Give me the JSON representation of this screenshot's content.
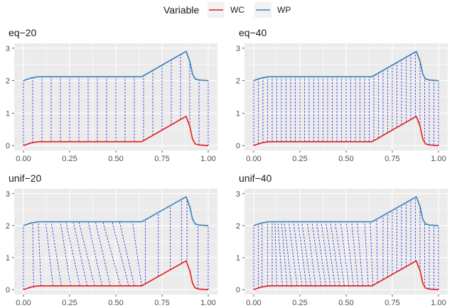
{
  "legend": {
    "title": "Variable",
    "items": [
      {
        "label": "WC",
        "color": "#e41a1c"
      },
      {
        "label": "WP",
        "color": "#377eb8"
      }
    ]
  },
  "chart_data": {
    "type": "line",
    "layout": "facet-grid-2x2",
    "grid": true,
    "panel_background": "#ebebeb",
    "connector_color": "#1f1fd9",
    "connector_style": "dashed",
    "xlim": [
      0,
      1
    ],
    "ylim": [
      0,
      3
    ],
    "x_ticks": [
      "0.00",
      "0.25",
      "0.50",
      "0.75",
      "1.00"
    ],
    "y_ticks": [
      "0",
      "1",
      "2",
      "3"
    ],
    "series": [
      {
        "name": "WC",
        "color": "#e41a1c",
        "x": [
          0.0,
          0.02,
          0.04,
          0.06,
          0.08,
          0.1,
          0.64,
          0.88,
          0.9,
          0.915,
          0.93,
          0.95,
          1.0
        ],
        "y": [
          0.0,
          0.04,
          0.08,
          0.1,
          0.12,
          0.12,
          0.12,
          0.9,
          0.6,
          0.2,
          0.05,
          0.02,
          0.0
        ]
      },
      {
        "name": "WP",
        "color": "#377eb8",
        "x": [
          0.0,
          0.02,
          0.04,
          0.06,
          0.08,
          0.1,
          0.64,
          0.88,
          0.9,
          0.915,
          0.93,
          0.95,
          1.0
        ],
        "y": [
          2.0,
          2.04,
          2.08,
          2.1,
          2.12,
          2.12,
          2.12,
          2.9,
          2.6,
          2.2,
          2.05,
          2.02,
          2.0
        ]
      }
    ],
    "panels": [
      {
        "title": "eq−20",
        "connectors": [
          [
            0.0,
            0.0
          ],
          [
            0.05,
            0.05
          ],
          [
            0.1,
            0.1
          ],
          [
            0.15,
            0.15
          ],
          [
            0.2,
            0.2
          ],
          [
            0.25,
            0.25
          ],
          [
            0.3,
            0.3
          ],
          [
            0.35,
            0.35
          ],
          [
            0.4,
            0.4
          ],
          [
            0.45,
            0.45
          ],
          [
            0.5,
            0.5
          ],
          [
            0.55,
            0.55
          ],
          [
            0.6,
            0.6
          ],
          [
            0.65,
            0.65
          ],
          [
            0.7,
            0.7
          ],
          [
            0.75,
            0.75
          ],
          [
            0.8,
            0.8
          ],
          [
            0.85,
            0.85
          ],
          [
            0.9,
            0.9
          ],
          [
            0.95,
            0.95
          ],
          [
            1.0,
            1.0
          ]
        ]
      },
      {
        "title": "eq−40",
        "connectors": [
          [
            0.0,
            0.0
          ],
          [
            0.025,
            0.025
          ],
          [
            0.05,
            0.05
          ],
          [
            0.075,
            0.075
          ],
          [
            0.1,
            0.1
          ],
          [
            0.125,
            0.125
          ],
          [
            0.15,
            0.15
          ],
          [
            0.175,
            0.175
          ],
          [
            0.2,
            0.2
          ],
          [
            0.225,
            0.225
          ],
          [
            0.25,
            0.25
          ],
          [
            0.275,
            0.275
          ],
          [
            0.3,
            0.3
          ],
          [
            0.325,
            0.325
          ],
          [
            0.35,
            0.35
          ],
          [
            0.375,
            0.375
          ],
          [
            0.4,
            0.4
          ],
          [
            0.425,
            0.425
          ],
          [
            0.45,
            0.45
          ],
          [
            0.475,
            0.475
          ],
          [
            0.5,
            0.5
          ],
          [
            0.525,
            0.525
          ],
          [
            0.55,
            0.55
          ],
          [
            0.575,
            0.575
          ],
          [
            0.6,
            0.6
          ],
          [
            0.625,
            0.625
          ],
          [
            0.65,
            0.65
          ],
          [
            0.675,
            0.675
          ],
          [
            0.7,
            0.7
          ],
          [
            0.725,
            0.725
          ],
          [
            0.75,
            0.75
          ],
          [
            0.775,
            0.775
          ],
          [
            0.8,
            0.8
          ],
          [
            0.825,
            0.825
          ],
          [
            0.85,
            0.85
          ],
          [
            0.875,
            0.875
          ],
          [
            0.9,
            0.9
          ],
          [
            0.925,
            0.925
          ],
          [
            0.95,
            0.95
          ],
          [
            0.975,
            0.975
          ],
          [
            1.0,
            1.0
          ]
        ]
      },
      {
        "title": "unif−20",
        "connectors": [
          [
            0.0,
            0.0
          ],
          [
            0.055,
            0.05
          ],
          [
            0.095,
            0.08
          ],
          [
            0.16,
            0.12
          ],
          [
            0.205,
            0.15
          ],
          [
            0.255,
            0.2
          ],
          [
            0.305,
            0.23
          ],
          [
            0.345,
            0.27
          ],
          [
            0.385,
            0.3
          ],
          [
            0.425,
            0.35
          ],
          [
            0.47,
            0.39
          ],
          [
            0.525,
            0.43
          ],
          [
            0.57,
            0.48
          ],
          [
            0.6,
            0.52
          ],
          [
            0.64,
            0.59
          ],
          [
            0.66,
            0.66
          ],
          [
            0.73,
            0.73
          ],
          [
            0.795,
            0.795
          ],
          [
            0.855,
            0.855
          ],
          [
            0.885,
            0.885
          ],
          [
            0.945,
            0.945
          ],
          [
            1.0,
            1.0
          ]
        ]
      },
      {
        "title": "unif−40",
        "connectors": [
          [
            0.0,
            0.0
          ],
          [
            0.025,
            0.025
          ],
          [
            0.045,
            0.045
          ],
          [
            0.075,
            0.075
          ],
          [
            0.1,
            0.1
          ],
          [
            0.125,
            0.115
          ],
          [
            0.155,
            0.13
          ],
          [
            0.18,
            0.15
          ],
          [
            0.205,
            0.165
          ],
          [
            0.235,
            0.19
          ],
          [
            0.26,
            0.215
          ],
          [
            0.285,
            0.24
          ],
          [
            0.31,
            0.26
          ],
          [
            0.335,
            0.29
          ],
          [
            0.365,
            0.315
          ],
          [
            0.39,
            0.34
          ],
          [
            0.415,
            0.365
          ],
          [
            0.44,
            0.39
          ],
          [
            0.465,
            0.415
          ],
          [
            0.49,
            0.44
          ],
          [
            0.515,
            0.47
          ],
          [
            0.54,
            0.5
          ],
          [
            0.565,
            0.53
          ],
          [
            0.59,
            0.56
          ],
          [
            0.62,
            0.6
          ],
          [
            0.645,
            0.63
          ],
          [
            0.67,
            0.665
          ],
          [
            0.7,
            0.7
          ],
          [
            0.725,
            0.725
          ],
          [
            0.75,
            0.75
          ],
          [
            0.775,
            0.775
          ],
          [
            0.8,
            0.8
          ],
          [
            0.825,
            0.825
          ],
          [
            0.85,
            0.85
          ],
          [
            0.875,
            0.875
          ],
          [
            0.9,
            0.9
          ],
          [
            0.925,
            0.925
          ],
          [
            0.95,
            0.95
          ],
          [
            0.975,
            0.975
          ],
          [
            1.0,
            1.0
          ]
        ]
      }
    ]
  }
}
